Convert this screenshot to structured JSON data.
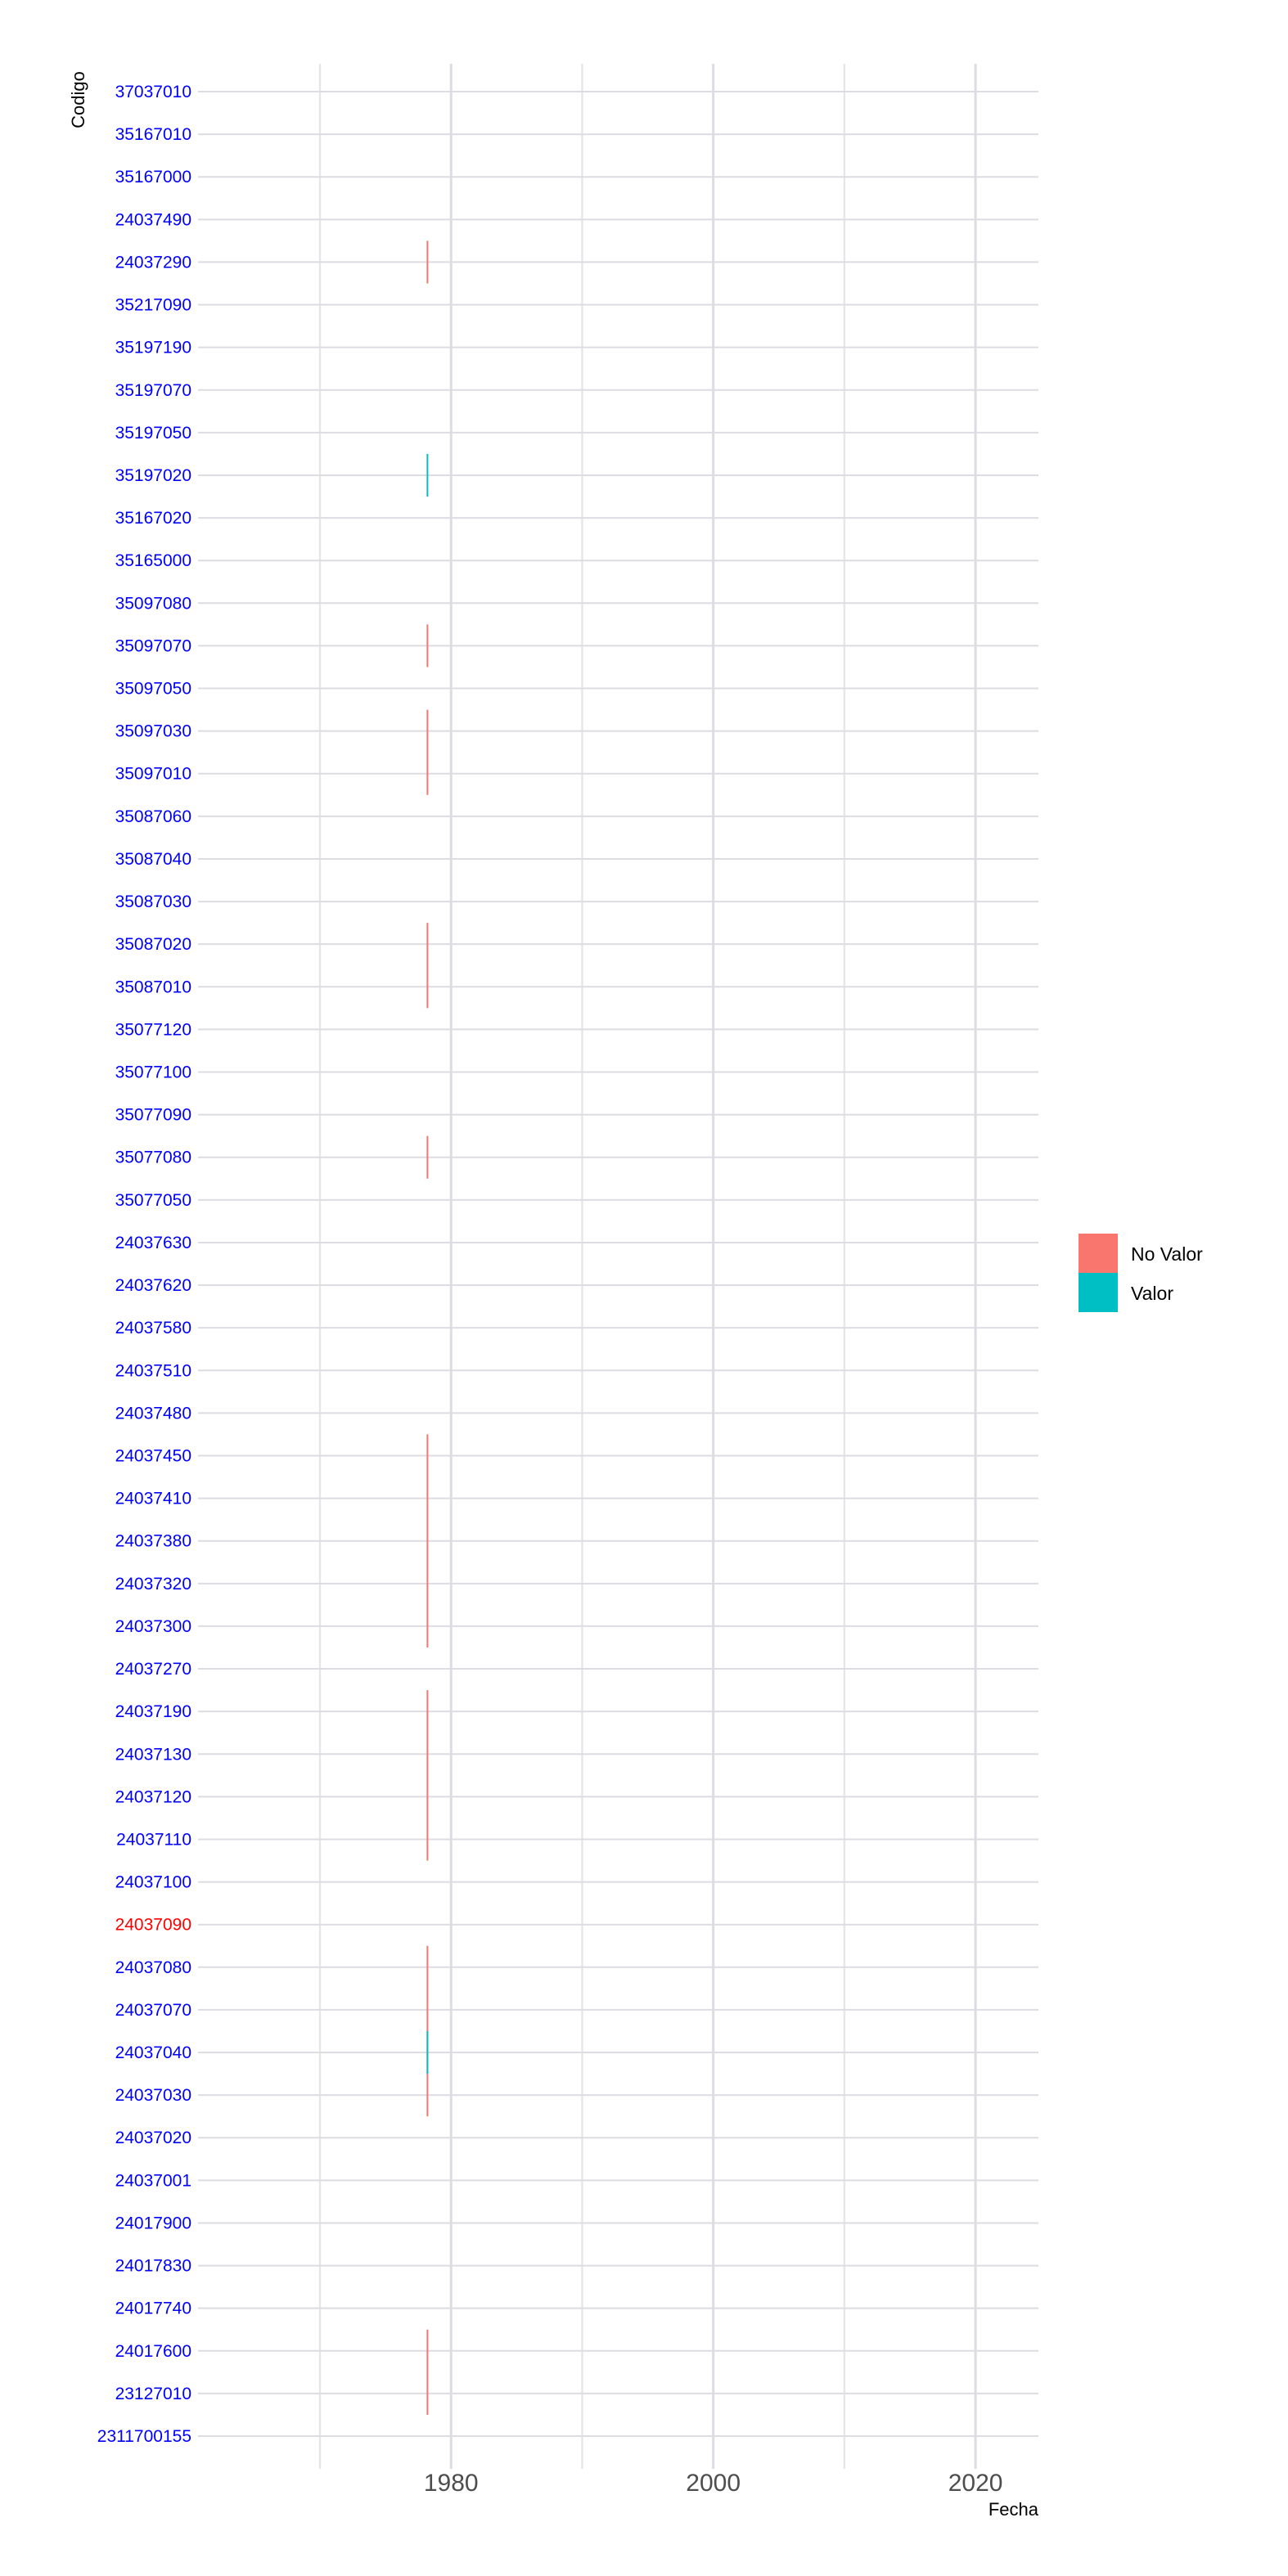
{
  "chart_data": {
    "type": "segment",
    "xlabel": "Fecha",
    "ylabel": "Codigo",
    "xlim": [
      1960.7,
      2024.8
    ],
    "x_ticks": [
      1980,
      2000,
      2020
    ],
    "x_tick_labels": [
      "1980",
      "2000",
      "2020"
    ],
    "x_minor_grid": [
      1970,
      1990,
      2010
    ],
    "categories": [
      "2311700155",
      "23127010",
      "24017600",
      "24017740",
      "24017830",
      "24017900",
      "24037001",
      "24037020",
      "24037030",
      "24037040",
      "24037070",
      "24037080",
      "24037090",
      "24037100",
      "24037110",
      "24037120",
      "24037130",
      "24037190",
      "24037270",
      "24037300",
      "24037320",
      "24037380",
      "24037410",
      "24037450",
      "24037480",
      "24037510",
      "24037580",
      "24037620",
      "24037630",
      "35077050",
      "35077080",
      "35077090",
      "35077100",
      "35077120",
      "35087010",
      "35087020",
      "35087030",
      "35087040",
      "35087060",
      "35097010",
      "35097030",
      "35097050",
      "35097070",
      "35097080",
      "35165000",
      "35167020",
      "35197020",
      "35197050",
      "35197070",
      "35197190",
      "35217090",
      "24037290",
      "24037490",
      "35167000",
      "35167010",
      "37037010"
    ],
    "label_colors": {
      "default": "#0000ff",
      "highlight": "#ff0000"
    },
    "highlight_label": "24037090",
    "legend": {
      "position": "right",
      "entries": [
        {
          "name": "No Valor",
          "color": "#F8766D"
        },
        {
          "name": "Valor",
          "color": "#00BFC4"
        }
      ]
    },
    "segments": [
      {
        "series": "No Valor",
        "x": 1978.2,
        "y_from": "24037290",
        "y_to": "24037290"
      },
      {
        "series": "Valor",
        "x": 1978.2,
        "y_from": "35197020",
        "y_to": "35197020"
      },
      {
        "series": "No Valor",
        "x": 1978.2,
        "y_from": "35097070",
        "y_to": "35097070"
      },
      {
        "series": "No Valor",
        "x": 1978.2,
        "y_from": "35097010",
        "y_to": "35097030"
      },
      {
        "series": "No Valor",
        "x": 1978.2,
        "y_from": "35087010",
        "y_to": "35087020"
      },
      {
        "series": "No Valor",
        "x": 1978.2,
        "y_from": "35077080",
        "y_to": "35077080"
      },
      {
        "series": "No Valor",
        "x": 1978.2,
        "y_from": "24037300",
        "y_to": "24037450"
      },
      {
        "series": "No Valor",
        "x": 1978.2,
        "y_from": "24037110",
        "y_to": "24037190"
      },
      {
        "series": "No Valor",
        "x": 1978.2,
        "y_from": "24037030",
        "y_to": "24037080"
      },
      {
        "series": "Valor",
        "x": 1978.2,
        "y_from": "24037040",
        "y_to": "24037040"
      },
      {
        "series": "No Valor",
        "x": 1978.2,
        "y_from": "23127010",
        "y_to": "24017600"
      }
    ]
  }
}
